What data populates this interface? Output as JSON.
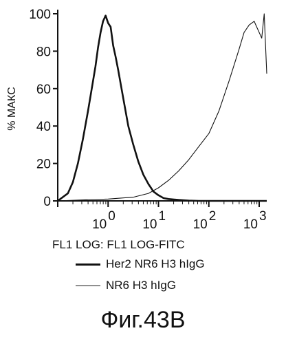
{
  "chart_data": {
    "type": "line",
    "title": "",
    "ylabel": "% МАКС",
    "xlabel": "FL1 LOG: FL1 LOG-FITC",
    "y_ticks": [
      "0",
      "20",
      "40",
      "60",
      "80",
      "100"
    ],
    "x_ticks": [
      {
        "value": 0,
        "base": "10",
        "exp": "0"
      },
      {
        "value": 1,
        "base": "10",
        "exp": "1"
      },
      {
        "value": 2,
        "base": "10",
        "exp": "2"
      },
      {
        "value": 3,
        "base": "10",
        "exp": "3"
      }
    ],
    "x_scale": "log10",
    "xlim": [
      -1.0,
      3.15
    ],
    "ylim": [
      0,
      100
    ],
    "grid": false,
    "legend_position": "below",
    "series": [
      {
        "name": "Her2 NR6 H3 hIgG",
        "line_weight": "thick",
        "x": [
          -1.0,
          -0.9,
          -0.8,
          -0.7,
          -0.6,
          -0.5,
          -0.4,
          -0.3,
          -0.25,
          -0.2,
          -0.15,
          -0.1,
          -0.05,
          0.0,
          0.05,
          0.1,
          0.15,
          0.2,
          0.3,
          0.4,
          0.5,
          0.6,
          0.7,
          0.8,
          0.9,
          1.0,
          1.1,
          1.2,
          1.4,
          1.6,
          1.8,
          2.0,
          2.5,
          3.15
        ],
        "y": [
          0,
          2,
          4,
          10,
          20,
          33,
          48,
          64,
          72,
          82,
          90,
          96,
          99,
          95,
          93,
          83,
          77,
          70,
          55,
          40,
          30,
          21,
          14,
          9,
          5,
          3,
          1.5,
          1,
          0.5,
          0.2,
          0,
          0,
          0,
          0
        ]
      },
      {
        "name": "NR6 H3 hIgG",
        "line_weight": "thin",
        "x": [
          -1.0,
          -0.5,
          0.0,
          0.5,
          0.8,
          1.0,
          1.2,
          1.4,
          1.6,
          1.8,
          2.0,
          2.2,
          2.4,
          2.6,
          2.7,
          2.8,
          2.9,
          2.95,
          3.0,
          3.05,
          3.1,
          3.15
        ],
        "y": [
          0,
          0.5,
          1,
          2,
          4,
          7,
          11,
          16,
          22,
          29,
          36,
          48,
          64,
          81,
          90,
          94,
          96,
          93,
          90,
          87,
          100,
          68
        ]
      }
    ]
  },
  "caption": "Фиг.43В"
}
